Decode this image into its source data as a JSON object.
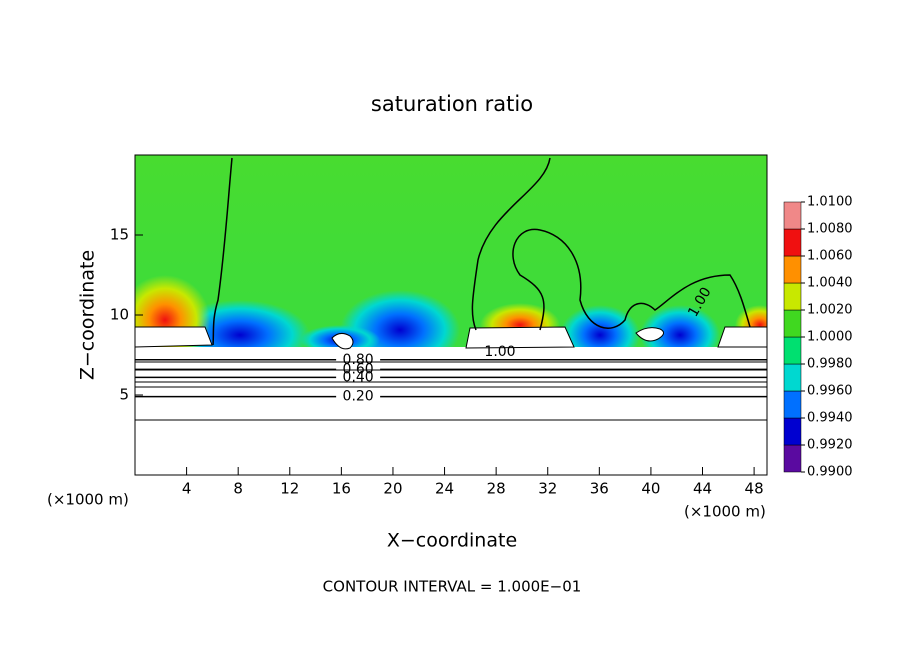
{
  "chart_data": {
    "type": "contour",
    "title": "saturation ratio",
    "x_label": "X−coordinate",
    "y_label": "Z−coordinate",
    "units": [
      "(×1000 m)",
      "(×1000 m)"
    ],
    "note": "CONTOUR INTERVAL = 1.000E−01",
    "xlim": [
      0,
      49
    ],
    "xticks": [
      4,
      8,
      12,
      16,
      20,
      24,
      28,
      32,
      36,
      40,
      44,
      48
    ],
    "ylim": [
      0,
      20
    ],
    "yticks": [
      5,
      10,
      15
    ],
    "contours": [
      {
        "level": {
          "value": 0.2,
          "label": "0.20"
        },
        "x": 17.3,
        "z": 4.9
      },
      {
        "level": {
          "value": 0.4,
          "label": "0.40"
        },
        "x": 17.3,
        "z": 6.1
      },
      {
        "level": {
          "value": 0.6,
          "label": "0.60"
        },
        "x": 17.3,
        "z": 6.6
      },
      {
        "level": {
          "value": 0.8,
          "label": "0.80"
        },
        "x": 17.3,
        "z": 7.2
      },
      {
        "level": {
          "value": 1.0,
          "label": "1.00"
        },
        "x": 28.3,
        "z": 7.7
      },
      {
        "level": {
          "value": 1.0,
          "label": "1.00"
        },
        "x": 43.8,
        "z": 10.8,
        "angle": -60
      }
    ],
    "colorbar": {
      "ticks": [
        {
          "value": 0.99,
          "label": "0.9900"
        },
        {
          "value": 0.992,
          "label": "0.9920"
        },
        {
          "value": 0.994,
          "label": "0.9940"
        },
        {
          "value": 0.996,
          "label": "0.9960"
        },
        {
          "value": 0.998,
          "label": "0.9980"
        },
        {
          "value": 1.0,
          "label": "1.0000"
        },
        {
          "value": 1.002,
          "label": "1.0020"
        },
        {
          "value": 1.004,
          "label": "1.0040"
        },
        {
          "value": 1.006,
          "label": "1.0060"
        },
        {
          "value": 1.008,
          "label": "1.0080"
        },
        {
          "value": 1.01,
          "label": "1.0100"
        }
      ],
      "colors": [
        "#5a0aa0",
        "#0000d0",
        "#0070ff",
        "#00d8d0",
        "#00e070",
        "#40d820",
        "#c8e800",
        "#ff9000",
        "#f01010",
        "#f08888"
      ]
    }
  }
}
